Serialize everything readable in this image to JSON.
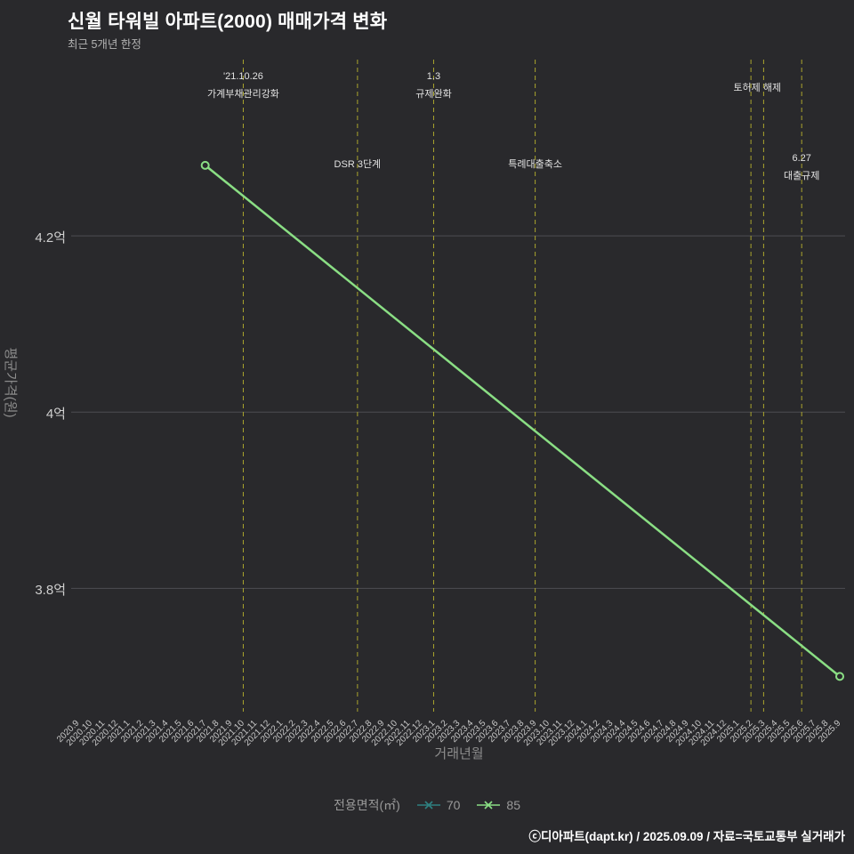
{
  "header": {
    "title": "신월 타워빌 아파트(2000) 매매가격 변화",
    "subtitle": "최근 5개년 한정"
  },
  "colors": {
    "background": "#29292c",
    "title": "#ffffff",
    "subtitle": "#b3b3b3",
    "axis_name": "#8c8c8c",
    "tick_label": "#cfcfcf",
    "grid": "#4d4d52",
    "event_line": "#aaa42c",
    "annotation": "#e2e2e2",
    "legend_label": "#999999",
    "footer": "#ffffff"
  },
  "chart_data": {
    "type": "line",
    "title": "신월 타워빌 아파트(2000) 매매가격 변화",
    "subtitle": "최근 5개년 한정",
    "xlabel": "거래년월",
    "ylabel": "평균가격(원)",
    "unit": "억원",
    "ylim": [
      3.66,
      4.4
    ],
    "grid": true,
    "legend_position": "bottom",
    "y_ticks": [
      {
        "label": "4.2억",
        "value": 4.2
      },
      {
        "label": "4억",
        "value": 4.0
      },
      {
        "label": "3.8억",
        "value": 3.8
      }
    ],
    "x_ticks": [
      "2020.9",
      "2020.10",
      "2020.11",
      "2020.12",
      "2021.1",
      "2021.2",
      "2021.3",
      "2021.4",
      "2021.5",
      "2021.6",
      "2021.7",
      "2021.8",
      "2021.9",
      "2021.10",
      "2021.11",
      "2021.12",
      "2022.1",
      "2022.2",
      "2022.3",
      "2022.4",
      "2022.5",
      "2022.6",
      "2022.7",
      "2022.8",
      "2022.9",
      "2022.10",
      "2022.11",
      "2022.12",
      "2023.1",
      "2023.2",
      "2023.3",
      "2023.4",
      "2023.5",
      "2023.6",
      "2023.7",
      "2023.8",
      "2023.9",
      "2023.10",
      "2023.11",
      "2023.12",
      "2024.1",
      "2024.2",
      "2024.3",
      "2024.4",
      "2024.5",
      "2024.6",
      "2024.7",
      "2024.8",
      "2024.9",
      "2024.10",
      "2024.11",
      "2024.12",
      "2025.1",
      "2025.2",
      "2025.3",
      "2025.4",
      "2025.5",
      "2025.6",
      "2025.7",
      "2025.8",
      "2025.9"
    ],
    "series": [
      {
        "name": "70",
        "color": "#2f8080",
        "points": []
      },
      {
        "name": "85",
        "color": "#8ade84",
        "points": [
          {
            "x": "2021.7",
            "value": 4.28
          },
          {
            "x": "2025.9",
            "value": 3.7
          }
        ]
      }
    ],
    "event_lines": [
      "2021.10",
      "2022.7",
      "2023.1",
      "2023.9",
      "2025.2",
      "2025.3",
      "2025.6"
    ],
    "annotations": [
      {
        "x": "2021.10",
        "row": "high",
        "dy": 0,
        "lines": [
          "'21.10.26",
          "가계부채관리강화"
        ]
      },
      {
        "x": "2022.7",
        "row": "mid",
        "dy": 4,
        "lines": [
          "DSR 3단계"
        ]
      },
      {
        "x": "2023.1",
        "row": "high",
        "dy": 0,
        "lines": [
          "1.3",
          "규제완화"
        ]
      },
      {
        "x": "2023.9",
        "row": "mid",
        "dy": 4,
        "lines": [
          "특례대출축소"
        ]
      },
      {
        "x": "2025.2",
        "x2": "2025.3",
        "row": "high",
        "dy": 10,
        "lines": [
          "토허제 해제"
        ]
      },
      {
        "x": "2025.6",
        "row": "mid",
        "dy": 0,
        "lines": [
          "6.27",
          "대출규제"
        ]
      }
    ],
    "legend": {
      "title": "전용면적(㎡)",
      "items": [
        {
          "label": "70",
          "color": "#2f8080"
        },
        {
          "label": "85",
          "color": "#8ade84"
        }
      ]
    }
  },
  "footer": {
    "credit": "ⓒ디아파트(dapt.kr) / 2025.09.09 / 자료=국토교통부 실거래가"
  }
}
